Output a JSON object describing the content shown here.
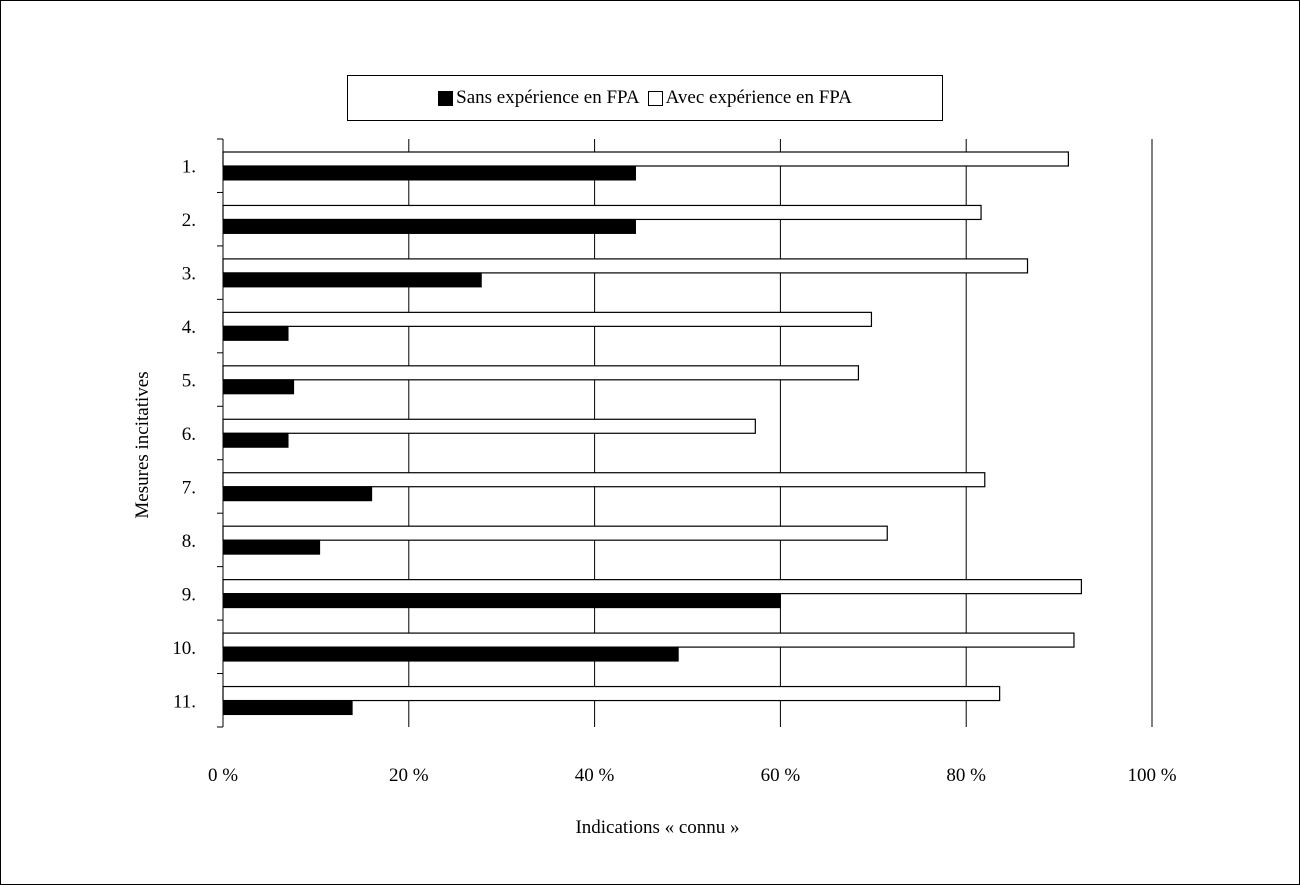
{
  "chart_data": {
    "type": "bar",
    "orientation": "horizontal",
    "categories": [
      "1.",
      "2.",
      "3.",
      "4.",
      "5.",
      "6.",
      "7.",
      "8.",
      "9.",
      "10.",
      "11."
    ],
    "series": [
      {
        "name": "Sans expérience en FPA",
        "color": "#000000",
        "values": [
          44.4,
          44.4,
          27.8,
          7.0,
          7.6,
          7.0,
          16.0,
          10.4,
          60.0,
          49.0,
          13.9
        ]
      },
      {
        "name": "Avec expérience en FPA",
        "color": "#ffffff",
        "values": [
          91.0,
          81.6,
          86.6,
          69.8,
          68.4,
          57.3,
          82.0,
          71.5,
          92.4,
          91.6,
          83.6
        ]
      }
    ],
    "xlabel": "Indications « connu »",
    "ylabel": "Mesures incitatives",
    "xlim": [
      0,
      100
    ],
    "xticks": [
      0,
      20,
      40,
      60,
      80,
      100
    ],
    "xtick_labels": [
      "0 %",
      "20 %",
      "40 %",
      "60 %",
      "80 %",
      "100 %"
    ],
    "grid": "vertical",
    "legend_position": "top"
  }
}
